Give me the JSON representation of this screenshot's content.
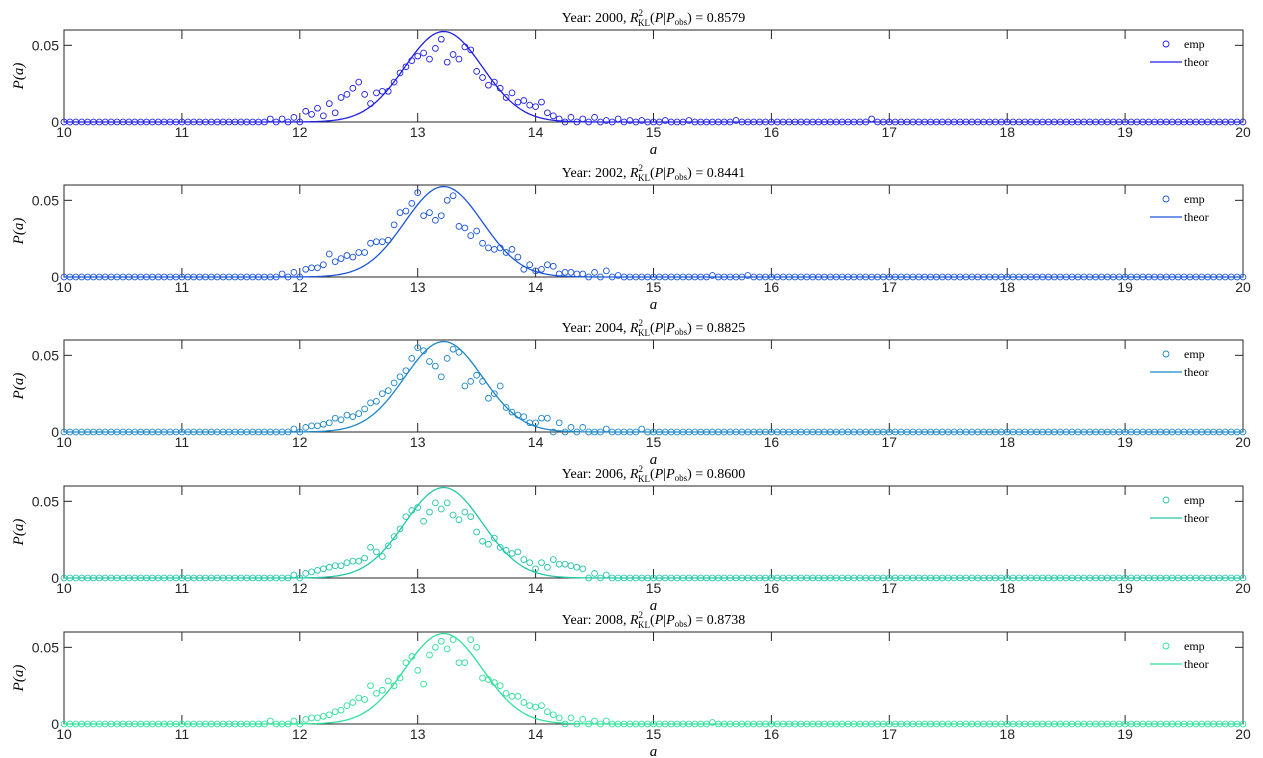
{
  "chart_data": [
    {
      "type": "scatter",
      "title": "Year: 2000, R²KL(P|Pobs) = 0.8579",
      "title_parts": {
        "prefix": "Year: 2000, ",
        "r": "R",
        "sup": "2",
        "sub": "KL",
        "mid1": "(",
        "p": "P",
        "bar": "|",
        "pobs": "P",
        "pobs_sub": "obs",
        "mid2": ") = ",
        "value": "0.8579"
      },
      "xlabel": "a",
      "ylabel": "P(a)",
      "xlim": [
        10,
        20
      ],
      "ylim": [
        0,
        0.06
      ],
      "xticks": [
        "10",
        "11",
        "12",
        "13",
        "14",
        "15",
        "16",
        "17",
        "18",
        "19",
        "20"
      ],
      "yticks": [
        "0",
        "0.05"
      ],
      "color": "#1f1fe6",
      "legend": {
        "position": "top-right",
        "entries": [
          "emp",
          "theor"
        ]
      },
      "series": [
        {
          "name": "emp",
          "kind": "markers",
          "x": [
            11.75,
            11.85,
            11.95,
            12.05,
            12.1,
            12.15,
            12.2,
            12.25,
            12.3,
            12.35,
            12.4,
            12.45,
            12.5,
            12.55,
            12.6,
            12.65,
            12.7,
            12.75,
            12.8,
            12.85,
            12.9,
            12.95,
            13.0,
            13.05,
            13.1,
            13.15,
            13.2,
            13.25,
            13.3,
            13.35,
            13.4,
            13.45,
            13.5,
            13.55,
            13.6,
            13.65,
            13.7,
            13.75,
            13.8,
            13.85,
            13.9,
            13.95,
            14.0,
            14.05,
            14.1,
            14.15,
            14.2,
            14.3,
            14.4,
            14.5,
            14.6,
            14.7,
            14.8,
            14.9,
            15.1,
            15.3,
            15.7,
            16.85
          ],
          "y": [
            0.002,
            0.002,
            0.003,
            0.007,
            0.005,
            0.009,
            0.004,
            0.012,
            0.006,
            0.016,
            0.018,
            0.022,
            0.026,
            0.018,
            0.012,
            0.019,
            0.02,
            0.02,
            0.026,
            0.032,
            0.036,
            0.04,
            0.043,
            0.045,
            0.041,
            0.048,
            0.054,
            0.039,
            0.044,
            0.041,
            0.049,
            0.047,
            0.033,
            0.029,
            0.024,
            0.026,
            0.022,
            0.016,
            0.019,
            0.013,
            0.014,
            0.011,
            0.01,
            0.013,
            0.006,
            0.004,
            0.002,
            0.003,
            0.002,
            0.003,
            0.001,
            0.002,
            0.001,
            0.001,
            0.001,
            0.001,
            0.001,
            0.002
          ]
        },
        {
          "name": "theor",
          "kind": "line",
          "mu": 13.22,
          "sigma": 0.33,
          "peak": 0.059
        }
      ]
    },
    {
      "type": "scatter",
      "title": "Year: 2002, R²KL(P|Pobs) = 0.8441",
      "title_parts": {
        "prefix": "Year: 2002, ",
        "r": "R",
        "sup": "2",
        "sub": "KL",
        "mid1": "(",
        "p": "P",
        "bar": "|",
        "pobs": "P",
        "pobs_sub": "obs",
        "mid2": ") = ",
        "value": "0.8441"
      },
      "xlabel": "a",
      "ylabel": "P(a)",
      "xlim": [
        10,
        20
      ],
      "ylim": [
        0,
        0.06
      ],
      "xticks": [
        "10",
        "11",
        "12",
        "13",
        "14",
        "15",
        "16",
        "17",
        "18",
        "19",
        "20"
      ],
      "yticks": [
        "0",
        "0.05"
      ],
      "color": "#1a55d8",
      "legend": {
        "position": "top-right",
        "entries": [
          "emp",
          "theor"
        ]
      },
      "series": [
        {
          "name": "emp",
          "kind": "markers",
          "x": [
            11.85,
            11.95,
            12.05,
            12.1,
            12.15,
            12.2,
            12.25,
            12.3,
            12.35,
            12.4,
            12.45,
            12.5,
            12.55,
            12.6,
            12.65,
            12.7,
            12.75,
            12.8,
            12.85,
            12.9,
            12.95,
            13.0,
            13.05,
            13.1,
            13.15,
            13.2,
            13.25,
            13.3,
            13.35,
            13.4,
            13.45,
            13.5,
            13.55,
            13.6,
            13.65,
            13.7,
            13.75,
            13.8,
            13.85,
            13.9,
            13.95,
            14.0,
            14.05,
            14.1,
            14.15,
            14.2,
            14.25,
            14.3,
            14.35,
            14.4,
            14.5,
            14.6,
            14.7,
            15.5,
            15.8
          ],
          "y": [
            0.002,
            0.003,
            0.005,
            0.006,
            0.006,
            0.008,
            0.015,
            0.01,
            0.012,
            0.014,
            0.013,
            0.016,
            0.016,
            0.022,
            0.023,
            0.023,
            0.024,
            0.034,
            0.042,
            0.043,
            0.048,
            0.055,
            0.04,
            0.042,
            0.037,
            0.04,
            0.05,
            0.053,
            0.033,
            0.032,
            0.027,
            0.03,
            0.022,
            0.019,
            0.018,
            0.019,
            0.016,
            0.018,
            0.013,
            0.005,
            0.008,
            0.004,
            0.005,
            0.008,
            0.007,
            0.002,
            0.003,
            0.003,
            0.002,
            0.002,
            0.003,
            0.004,
            0.001,
            0.001,
            0.001
          ]
        },
        {
          "name": "theor",
          "kind": "line",
          "mu": 13.22,
          "sigma": 0.33,
          "peak": 0.059
        }
      ]
    },
    {
      "type": "scatter",
      "title": "Year: 2004, R²KL(P|Pobs) = 0.8825",
      "title_parts": {
        "prefix": "Year: 2004, ",
        "r": "R",
        "sup": "2",
        "sub": "KL",
        "mid1": "(",
        "p": "P",
        "bar": "|",
        "pobs": "P",
        "pobs_sub": "obs",
        "mid2": ") = ",
        "value": "0.8825"
      },
      "xlabel": "a",
      "ylabel": "P(a)",
      "xlim": [
        10,
        20
      ],
      "ylim": [
        0,
        0.06
      ],
      "xticks": [
        "10",
        "11",
        "12",
        "13",
        "14",
        "15",
        "16",
        "17",
        "18",
        "19",
        "20"
      ],
      "yticks": [
        "0",
        "0.05"
      ],
      "color": "#1c86c9",
      "legend": {
        "position": "top-right",
        "entries": [
          "emp",
          "theor"
        ]
      },
      "series": [
        {
          "name": "emp",
          "kind": "markers",
          "x": [
            11.95,
            12.05,
            12.1,
            12.15,
            12.2,
            12.25,
            12.3,
            12.35,
            12.4,
            12.45,
            12.5,
            12.55,
            12.6,
            12.65,
            12.7,
            12.75,
            12.8,
            12.85,
            12.9,
            12.95,
            13.0,
            13.05,
            13.1,
            13.15,
            13.2,
            13.25,
            13.3,
            13.35,
            13.4,
            13.45,
            13.5,
            13.55,
            13.6,
            13.65,
            13.7,
            13.75,
            13.8,
            13.85,
            13.9,
            13.95,
            14.0,
            14.05,
            14.1,
            14.2,
            14.3,
            14.4,
            14.6,
            14.9
          ],
          "y": [
            0.002,
            0.003,
            0.004,
            0.004,
            0.005,
            0.006,
            0.009,
            0.008,
            0.011,
            0.01,
            0.012,
            0.015,
            0.019,
            0.02,
            0.025,
            0.027,
            0.032,
            0.036,
            0.04,
            0.048,
            0.055,
            0.053,
            0.046,
            0.043,
            0.036,
            0.048,
            0.054,
            0.052,
            0.03,
            0.033,
            0.037,
            0.033,
            0.022,
            0.025,
            0.03,
            0.016,
            0.013,
            0.011,
            0.01,
            0.006,
            0.006,
            0.009,
            0.009,
            0.006,
            0.003,
            0.003,
            0.002,
            0.002
          ]
        },
        {
          "name": "theor",
          "kind": "line",
          "mu": 13.22,
          "sigma": 0.33,
          "peak": 0.059
        }
      ]
    },
    {
      "type": "scatter",
      "title": "Year: 2006, R²KL(P|Pobs) = 0.8600",
      "title_parts": {
        "prefix": "Year: 2006, ",
        "r": "R",
        "sup": "2",
        "sub": "KL",
        "mid1": "(",
        "p": "P",
        "bar": "|",
        "pobs": "P",
        "pobs_sub": "obs",
        "mid2": ") = ",
        "value": "0.8600"
      },
      "xlabel": "a",
      "ylabel": "P(a)",
      "xlim": [
        10,
        20
      ],
      "ylim": [
        0,
        0.06
      ],
      "xticks": [
        "10",
        "11",
        "12",
        "13",
        "14",
        "15",
        "16",
        "17",
        "18",
        "19",
        "20"
      ],
      "yticks": [
        "0",
        "0.05"
      ],
      "color": "#23c7a8",
      "legend": {
        "position": "top-right",
        "entries": [
          "emp",
          "theor"
        ]
      },
      "series": [
        {
          "name": "emp",
          "kind": "markers",
          "x": [
            11.95,
            12.05,
            12.1,
            12.15,
            12.2,
            12.25,
            12.3,
            12.35,
            12.4,
            12.45,
            12.5,
            12.55,
            12.6,
            12.65,
            12.7,
            12.75,
            12.8,
            12.85,
            12.9,
            12.95,
            13.0,
            13.05,
            13.1,
            13.15,
            13.2,
            13.25,
            13.3,
            13.35,
            13.4,
            13.45,
            13.5,
            13.55,
            13.6,
            13.65,
            13.7,
            13.75,
            13.8,
            13.85,
            13.9,
            13.95,
            14.0,
            14.05,
            14.1,
            14.15,
            14.2,
            14.25,
            14.3,
            14.35,
            14.4,
            14.5,
            14.6
          ],
          "y": [
            0.002,
            0.003,
            0.004,
            0.005,
            0.006,
            0.007,
            0.008,
            0.008,
            0.01,
            0.011,
            0.011,
            0.013,
            0.02,
            0.017,
            0.014,
            0.021,
            0.027,
            0.032,
            0.04,
            0.044,
            0.046,
            0.037,
            0.043,
            0.049,
            0.045,
            0.049,
            0.041,
            0.038,
            0.043,
            0.04,
            0.03,
            0.024,
            0.022,
            0.026,
            0.02,
            0.018,
            0.016,
            0.017,
            0.012,
            0.01,
            0.006,
            0.01,
            0.007,
            0.012,
            0.009,
            0.009,
            0.008,
            0.007,
            0.006,
            0.003,
            0.002
          ]
        },
        {
          "name": "theor",
          "kind": "line",
          "mu": 13.22,
          "sigma": 0.33,
          "peak": 0.059
        }
      ]
    },
    {
      "type": "scatter",
      "title": "Year: 2008, R²KL(P|Pobs) = 0.8738",
      "title_parts": {
        "prefix": "Year: 2008, ",
        "r": "R",
        "sup": "2",
        "sub": "KL",
        "mid1": "(",
        "p": "P",
        "bar": "|",
        "pobs": "P",
        "pobs_sub": "obs",
        "mid2": ") = ",
        "value": "0.8738"
      },
      "xlabel": "a",
      "ylabel": "P(a)",
      "xlim": [
        10,
        20
      ],
      "ylim": [
        0,
        0.06
      ],
      "xticks": [
        "10",
        "11",
        "12",
        "13",
        "14",
        "15",
        "16",
        "17",
        "18",
        "19",
        "20"
      ],
      "yticks": [
        "0",
        "0.05"
      ],
      "color": "#2ee09a",
      "legend": {
        "position": "top-right",
        "entries": [
          "emp",
          "theor"
        ]
      },
      "series": [
        {
          "name": "emp",
          "kind": "markers",
          "x": [
            11.75,
            11.95,
            12.05,
            12.1,
            12.15,
            12.2,
            12.25,
            12.3,
            12.35,
            12.4,
            12.45,
            12.5,
            12.55,
            12.6,
            12.65,
            12.7,
            12.75,
            12.8,
            12.85,
            12.9,
            12.95,
            13.0,
            13.05,
            13.1,
            13.15,
            13.2,
            13.25,
            13.3,
            13.35,
            13.4,
            13.45,
            13.5,
            13.55,
            13.6,
            13.65,
            13.7,
            13.75,
            13.8,
            13.85,
            13.9,
            13.95,
            14.0,
            14.05,
            14.1,
            14.15,
            14.2,
            14.3,
            14.4,
            14.5,
            14.6,
            15.5
          ],
          "y": [
            0.002,
            0.002,
            0.003,
            0.004,
            0.004,
            0.005,
            0.006,
            0.008,
            0.009,
            0.012,
            0.014,
            0.017,
            0.016,
            0.025,
            0.02,
            0.022,
            0.028,
            0.025,
            0.03,
            0.04,
            0.044,
            0.035,
            0.026,
            0.045,
            0.05,
            0.054,
            0.049,
            0.055,
            0.04,
            0.04,
            0.055,
            0.05,
            0.03,
            0.029,
            0.027,
            0.025,
            0.02,
            0.018,
            0.018,
            0.014,
            0.012,
            0.011,
            0.012,
            0.008,
            0.006,
            0.004,
            0.004,
            0.003,
            0.002,
            0.002,
            0.001
          ]
        },
        {
          "name": "theor",
          "kind": "line",
          "mu": 13.22,
          "sigma": 0.33,
          "peak": 0.059
        }
      ]
    }
  ]
}
